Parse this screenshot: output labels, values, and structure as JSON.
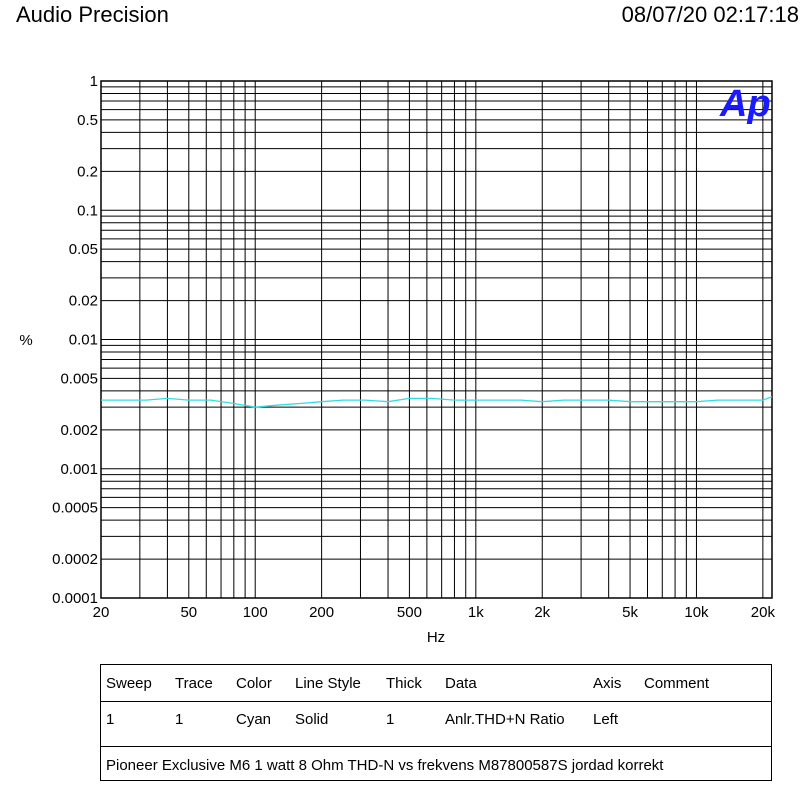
{
  "header": {
    "app_title": "Audio Precision",
    "timestamp": "08/07/20 02:17:18"
  },
  "logo": {
    "text": "Ap",
    "color": "#1a1aff"
  },
  "chart_data": {
    "type": "line",
    "xlabel": "Hz",
    "ylabel": "%",
    "xscale": "log",
    "yscale": "log",
    "xlim": [
      20,
      22000
    ],
    "ylim": [
      0.0001,
      1
    ],
    "x_ticks": [
      {
        "value": 20,
        "label": "20"
      },
      {
        "value": 50,
        "label": "50"
      },
      {
        "value": 100,
        "label": "100"
      },
      {
        "value": 200,
        "label": "200"
      },
      {
        "value": 500,
        "label": "500"
      },
      {
        "value": 1000,
        "label": "1k"
      },
      {
        "value": 2000,
        "label": "2k"
      },
      {
        "value": 5000,
        "label": "5k"
      },
      {
        "value": 10000,
        "label": "10k"
      },
      {
        "value": 20000,
        "label": "20k"
      }
    ],
    "y_ticks": [
      {
        "value": 1,
        "label": "1"
      },
      {
        "value": 0.5,
        "label": "0.5"
      },
      {
        "value": 0.2,
        "label": "0.2"
      },
      {
        "value": 0.1,
        "label": "0.1"
      },
      {
        "value": 0.05,
        "label": "0.05"
      },
      {
        "value": 0.02,
        "label": "0.02"
      },
      {
        "value": 0.01,
        "label": "0.01"
      },
      {
        "value": 0.005,
        "label": "0.005"
      },
      {
        "value": 0.002,
        "label": "0.002"
      },
      {
        "value": 0.001,
        "label": "0.001"
      },
      {
        "value": 0.0005,
        "label": "0.0005"
      },
      {
        "value": 0.0002,
        "label": "0.0002"
      },
      {
        "value": 0.0001,
        "label": "0.0001"
      }
    ],
    "grid": true,
    "series": [
      {
        "color": "#33dddd",
        "x": [
          20,
          25,
          32,
          40,
          50,
          63,
          80,
          100,
          125,
          160,
          200,
          250,
          315,
          400,
          500,
          630,
          800,
          1000,
          1250,
          1600,
          2000,
          2500,
          3150,
          4000,
          5000,
          6300,
          8000,
          10000,
          12500,
          16000,
          20000,
          22000
        ],
        "y": [
          0.0034,
          0.0034,
          0.0034,
          0.0035,
          0.0034,
          0.0034,
          0.0032,
          0.003,
          0.0031,
          0.0032,
          0.0033,
          0.0034,
          0.0034,
          0.0033,
          0.0035,
          0.0035,
          0.0034,
          0.0034,
          0.0034,
          0.0034,
          0.0033,
          0.0034,
          0.0034,
          0.0034,
          0.0033,
          0.0033,
          0.0033,
          0.0033,
          0.0034,
          0.0034,
          0.0034,
          0.0036
        ]
      }
    ]
  },
  "legend": {
    "headers": [
      "Sweep",
      "Trace",
      "Color",
      "Line Style",
      "Thick",
      "Data",
      "Axis",
      "Comment"
    ],
    "row": [
      "1",
      "1",
      "Cyan",
      "Solid",
      "1",
      "Anlr.THD+N Ratio",
      "Left",
      ""
    ],
    "comment": "Pioneer Exclusive M6 1 watt 8 Ohm THD-N vs frekvens M87800587S jordad korrekt"
  }
}
